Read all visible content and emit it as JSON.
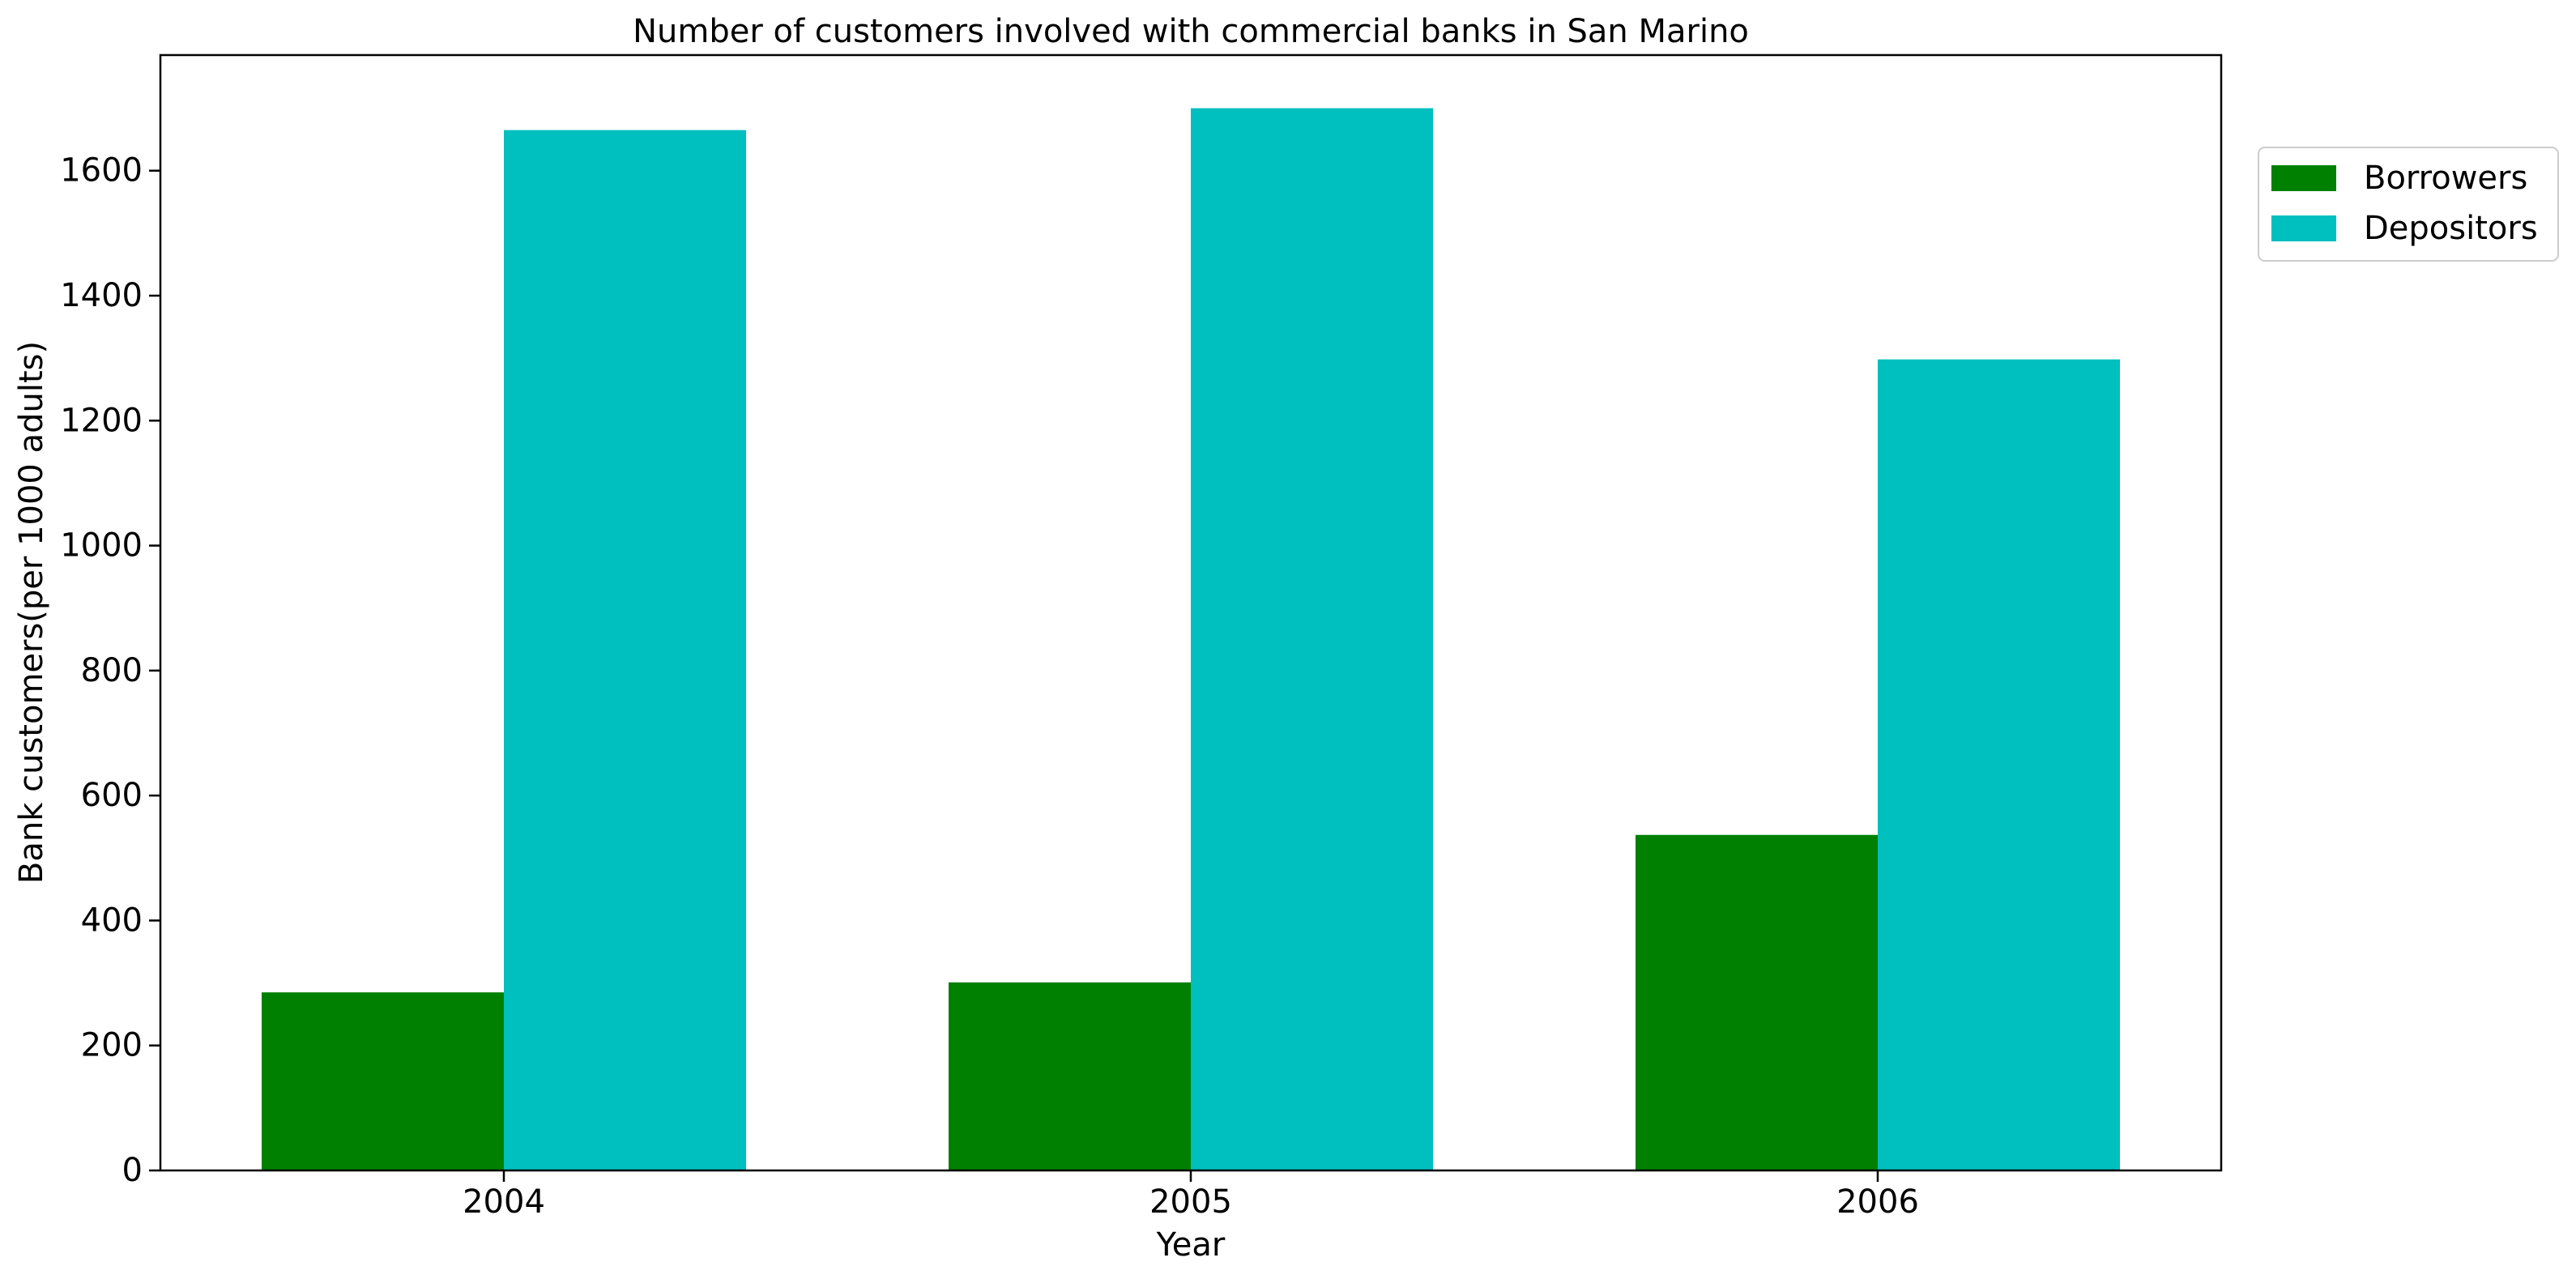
{
  "chart_data": {
    "type": "bar",
    "title": "Number of customers involved with commercial banks in San Marino",
    "xlabel": "Year",
    "ylabel": "Bank customers(per 1000 adults)",
    "categories": [
      "2004",
      "2005",
      "2006"
    ],
    "series": [
      {
        "name": "Borrowers",
        "color": "#008000",
        "values": [
          285,
          301,
          537
        ]
      },
      {
        "name": "Depositors",
        "color": "#00BFBF",
        "values": [
          1665,
          1700,
          1298
        ]
      }
    ],
    "ylim": [
      0,
      1785
    ],
    "yticks": [
      0,
      200,
      400,
      600,
      800,
      1000,
      1200,
      1400,
      1600
    ],
    "grid": false,
    "legend_position": "top-right, outside plot"
  }
}
